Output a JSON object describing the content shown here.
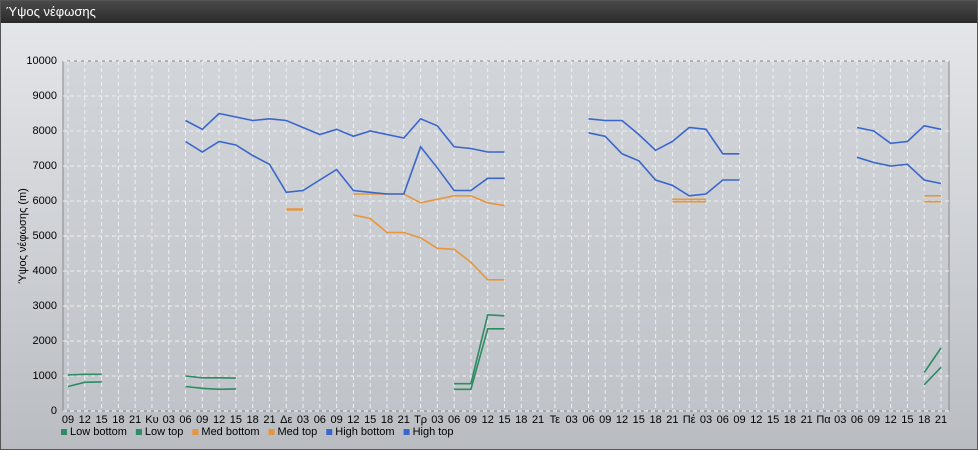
{
  "chart_data": {
    "type": "line",
    "title": "Ύψος νέφωσης",
    "ylabel": "Ύψος νέφωσης (m)",
    "categories": [
      "09",
      "12",
      "15",
      "18",
      "21",
      "Κυ",
      "03",
      "06",
      "09",
      "12",
      "15",
      "18",
      "21",
      "Δε",
      "03",
      "06",
      "09",
      "12",
      "15",
      "18",
      "21",
      "Τρ",
      "03",
      "06",
      "09",
      "12",
      "15",
      "18",
      "21",
      "Τε",
      "03",
      "06",
      "09",
      "12",
      "15",
      "18",
      "21",
      "Πέ",
      "03",
      "06",
      "09",
      "12",
      "15",
      "18",
      "21",
      "Πα",
      "03",
      "06",
      "09",
      "12",
      "15",
      "18",
      "21"
    ],
    "ylim": [
      0,
      10000
    ],
    "yticks": [
      0,
      1000,
      2000,
      3000,
      4000,
      5000,
      6000,
      7000,
      8000,
      9000,
      10000
    ],
    "grid": true,
    "series": [
      {
        "name": "Low bottom",
        "color": "#2e8b62",
        "values": [
          700,
          820,
          830,
          null,
          null,
          null,
          null,
          700,
          650,
          620,
          630,
          null,
          null,
          null,
          null,
          null,
          null,
          null,
          null,
          null,
          null,
          null,
          null,
          620,
          620,
          2350,
          2350,
          null,
          null,
          null,
          null,
          null,
          null,
          null,
          null,
          null,
          null,
          null,
          null,
          null,
          null,
          null,
          null,
          null,
          null,
          null,
          null,
          null,
          null,
          null,
          null,
          750,
          1250
        ]
      },
      {
        "name": "Low top",
        "color": "#2e8b62",
        "values": [
          1030,
          1050,
          1050,
          null,
          null,
          null,
          null,
          1000,
          950,
          950,
          940,
          null,
          null,
          null,
          null,
          null,
          null,
          null,
          null,
          null,
          null,
          null,
          null,
          780,
          780,
          2750,
          2720,
          null,
          null,
          null,
          null,
          null,
          null,
          null,
          null,
          null,
          null,
          null,
          null,
          null,
          null,
          null,
          null,
          null,
          null,
          null,
          null,
          null,
          null,
          null,
          null,
          1100,
          1800
        ]
      },
      {
        "name": "Med bottom",
        "color": "#e8963c",
        "values": [
          null,
          null,
          null,
          null,
          null,
          null,
          null,
          null,
          null,
          null,
          null,
          null,
          null,
          5750,
          5750,
          null,
          null,
          5600,
          5500,
          5100,
          5100,
          4950,
          4650,
          4620,
          4250,
          3750,
          3750,
          null,
          null,
          null,
          null,
          null,
          null,
          null,
          null,
          null,
          5980,
          5980,
          5980,
          null,
          null,
          null,
          null,
          null,
          null,
          null,
          null,
          null,
          null,
          null,
          null,
          5980,
          5980
        ]
      },
      {
        "name": "Med top",
        "color": "#e8963c",
        "values": [
          null,
          null,
          null,
          null,
          null,
          null,
          null,
          null,
          null,
          null,
          null,
          null,
          null,
          5770,
          5770,
          null,
          null,
          6200,
          6200,
          6200,
          6200,
          5950,
          6050,
          6150,
          6150,
          5950,
          5870,
          null,
          null,
          null,
          null,
          null,
          null,
          null,
          null,
          null,
          6050,
          6050,
          6050,
          null,
          null,
          null,
          null,
          null,
          null,
          null,
          null,
          null,
          null,
          null,
          null,
          6150,
          6150
        ]
      },
      {
        "name": "High bottom",
        "color": "#3a66cc",
        "values": [
          null,
          null,
          null,
          null,
          null,
          null,
          null,
          7700,
          7400,
          7700,
          7600,
          7300,
          7050,
          6250,
          6300,
          6600,
          6900,
          6300,
          6250,
          6200,
          6200,
          7550,
          6950,
          6300,
          6300,
          6650,
          6650,
          null,
          null,
          null,
          null,
          7950,
          7850,
          7350,
          7150,
          6600,
          6450,
          6150,
          6200,
          6600,
          6600,
          null,
          null,
          null,
          null,
          null,
          null,
          7250,
          7100,
          7000,
          7050,
          6600,
          6500
        ]
      },
      {
        "name": "High top",
        "color": "#3a66cc",
        "values": [
          null,
          null,
          null,
          null,
          null,
          null,
          null,
          8300,
          8050,
          8500,
          8400,
          8300,
          8350,
          8300,
          8100,
          7900,
          8050,
          7850,
          8000,
          7900,
          7800,
          8350,
          8150,
          7550,
          7500,
          7400,
          7400,
          null,
          null,
          null,
          null,
          8350,
          8300,
          8300,
          7900,
          7450,
          7700,
          8100,
          8050,
          7350,
          7350,
          null,
          null,
          null,
          null,
          null,
          null,
          8100,
          8000,
          7650,
          7700,
          8150,
          8050
        ]
      }
    ]
  }
}
